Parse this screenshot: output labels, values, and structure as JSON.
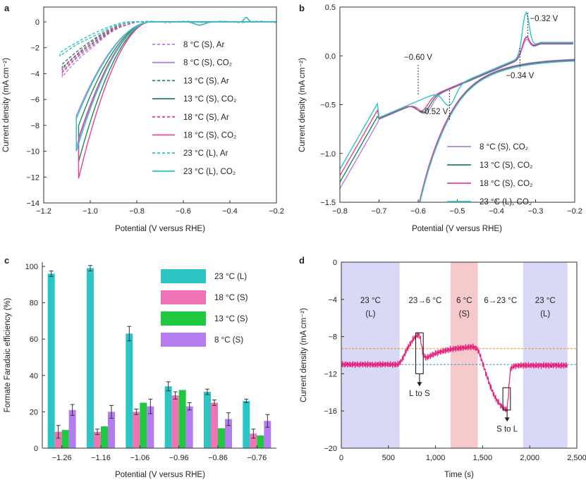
{
  "figure": {
    "panel_letters": [
      "a",
      "b",
      "c",
      "d"
    ]
  },
  "chart_data": [
    {
      "panel": "a",
      "type": "line",
      "xlabel": "Potential (V versus RHE)",
      "ylabel": "Current density (mA cm⁻²)",
      "xlim": [
        -1.2,
        -0.2
      ],
      "ylim": [
        -14,
        0.5
      ],
      "xticks": [
        -1.2,
        -1.0,
        -0.8,
        -0.6,
        -0.4,
        -0.2
      ],
      "xtick_labels": [
        "−1.2",
        "−1.0",
        "−0.8",
        "−0.6",
        "−0.4",
        "−0.2"
      ],
      "yticks": [
        0,
        -2,
        -4,
        -6,
        -8,
        -10,
        -12,
        -14
      ],
      "ytick_labels": [
        "0",
        "−2",
        "−4",
        "−6",
        "−8",
        "−10",
        "−12",
        "−14"
      ],
      "legend_position": "right",
      "series": [
        {
          "name": "8 °C (S), Ar",
          "color": "#b57ce8",
          "dashed": true,
          "xmin": -1.12,
          "jmin": -4.2,
          "onset": -0.8,
          "shape": 1.5
        },
        {
          "name": "8 °C (S), CO₂",
          "color": "#b57ce8",
          "dashed": false,
          "xmin": -1.06,
          "jmin": -9.7,
          "onset": -0.74,
          "shape": 1.9
        },
        {
          "name": "13 °C (S), Ar",
          "color": "#1e8a52",
          "dashed": true,
          "xmin": -1.12,
          "jmin": -3.6,
          "onset": -0.8,
          "shape": 1.5
        },
        {
          "name": "13 °C (S), CO₂",
          "color": "#1e8a52",
          "dashed": false,
          "xmin": -1.05,
          "jmin": -10.8,
          "onset": -0.74,
          "shape": 1.9
        },
        {
          "name": "18 °C (S), Ar",
          "color": "#e8409a",
          "dashed": true,
          "xmin": -1.12,
          "jmin": -3.9,
          "onset": -0.8,
          "shape": 1.5
        },
        {
          "name": "18 °C (S), CO₂",
          "color": "#e8409a",
          "dashed": false,
          "xmin": -1.05,
          "jmin": -12.1,
          "onset": -0.74,
          "shape": 1.9
        },
        {
          "name": "23 °C (L), Ar",
          "color": "#2cc5c5",
          "dashed": true,
          "xmin": -1.13,
          "jmin": -2.6,
          "onset": -0.82,
          "shape": 1.4
        },
        {
          "name": "23 °C (L), CO₂",
          "color": "#2cc5c5",
          "dashed": false,
          "xmin": -1.06,
          "jmin": -10.0,
          "onset": -0.74,
          "shape": 1.9
        }
      ]
    },
    {
      "panel": "b",
      "type": "line",
      "xlabel": "Potential (V versus RHE)",
      "ylabel": "Current density (mA cm⁻²)",
      "xlim": [
        -0.8,
        -0.2
      ],
      "ylim": [
        -1.5,
        0.5
      ],
      "xticks": [
        -0.8,
        -0.7,
        -0.6,
        -0.5,
        -0.4,
        -0.3,
        -0.2
      ],
      "xtick_labels": [
        "−0.8",
        "−0.7",
        "−0.6",
        "−0.5",
        "−0.4",
        "−0.3",
        "−0.2"
      ],
      "yticks": [
        0.5,
        0.0,
        -0.5,
        -1.0,
        -1.5
      ],
      "ytick_labels": [
        "0.5",
        "0.0",
        "−0.5",
        "−1.0",
        "−1.5"
      ],
      "legend_position": "bottom-right",
      "annotations": [
        {
          "text": "−0.32 V",
          "x": -0.32
        },
        {
          "text": "−0.34 V",
          "x": -0.34
        },
        {
          "text": "−0.60 V",
          "x": -0.6
        },
        {
          "text": "−0.52 V",
          "x": -0.52
        }
      ],
      "series": [
        {
          "name": "8 °C (S), CO₂",
          "color": "#b57ce8",
          "peak_ox": 0.12,
          "peak_red": -0.38
        },
        {
          "name": "13 °C (S), CO₂",
          "color": "#1e8a52",
          "peak_ox": 0.14,
          "peak_red": -0.36
        },
        {
          "name": "18 °C (S), CO₂",
          "color": "#e8409a",
          "peak_ox": 0.13,
          "peak_red": -0.3
        },
        {
          "name": "23 °C (L), CO₂",
          "color": "#2cc5c5",
          "peak_ox": 0.38,
          "peak_red": -0.5
        }
      ]
    },
    {
      "panel": "c",
      "type": "bar",
      "xlabel": "Potential (V versus RHE)",
      "ylabel": "Formate Faradaic efficiency (%)",
      "ylim": [
        0,
        100
      ],
      "yticks": [
        0,
        20,
        40,
        60,
        80,
        100
      ],
      "categories": [
        "−1.26",
        "−1.16",
        "−1.06",
        "−0.96",
        "−0.86",
        "−0.76"
      ],
      "legend_position": "top-right",
      "series": [
        {
          "name": "23 °C (L)",
          "color": "#2cc5c5",
          "values": [
            96,
            99,
            63,
            34,
            31,
            26
          ],
          "errors": [
            1.5,
            1.5,
            4,
            2.5,
            1.5,
            1
          ]
        },
        {
          "name": "18 °C (S)",
          "color": "#f073b5",
          "values": [
            9,
            9,
            20,
            29,
            25,
            8
          ],
          "errors": [
            3.5,
            1.5,
            1.5,
            2,
            1.5,
            2.5
          ]
        },
        {
          "name": "13 °C (S)",
          "color": "#20c840",
          "values": [
            10,
            12,
            25,
            32,
            11,
            7
          ],
          "errors": [
            0,
            0,
            0,
            0,
            0,
            0
          ]
        },
        {
          "name": "8 °C (S)",
          "color": "#b57cf0",
          "values": [
            21,
            20,
            23,
            23,
            16,
            15
          ],
          "errors": [
            3,
            3.5,
            4,
            2,
            3.5,
            3.5
          ]
        }
      ]
    },
    {
      "panel": "d",
      "type": "line",
      "xlabel": "Time (s)",
      "ylabel": "Current density (mA cm⁻²)",
      "xlim": [
        0,
        2500
      ],
      "ylim": [
        -20,
        0
      ],
      "xticks": [
        0,
        500,
        1000,
        1500,
        2000,
        2500
      ],
      "xtick_labels": [
        "0",
        "500",
        "1,000",
        "1,500",
        "2,000",
        "2,500"
      ],
      "yticks": [
        0,
        -4,
        -8,
        -12,
        -16,
        -20
      ],
      "ytick_labels": [
        "0",
        "−4",
        "−8",
        "−12",
        "−16",
        "−20"
      ],
      "reference_lines": [
        {
          "y": -9.3,
          "color": "#f08c1e"
        },
        {
          "y": -11.0,
          "color": "#3a9ad9"
        }
      ],
      "regions": [
        {
          "x0": 0,
          "x1": 620,
          "color": "#d9d8f7",
          "label_line1": "23 °C",
          "label_line2": "(L)"
        },
        {
          "x0": 620,
          "x1": 1160,
          "color": "#ffffff",
          "label_line1": "23→6 °C",
          "label_line2": ""
        },
        {
          "x0": 1160,
          "x1": 1450,
          "color": "#f6c9cd",
          "label_line1": "6 °C",
          "label_line2": "(S)"
        },
        {
          "x0": 1450,
          "x1": 1930,
          "color": "#ffffff",
          "label_line1": "6→23 °C",
          "label_line2": ""
        },
        {
          "x0": 1930,
          "x1": 2400,
          "color": "#d9d8f7",
          "label_line1": "23 °C",
          "label_line2": "(L)"
        }
      ],
      "annotations": [
        {
          "text": "L to S",
          "x": 830,
          "y_from": -12.0,
          "y_to": -13.2
        },
        {
          "text": "S to L",
          "x": 1760,
          "y_from": -15.8,
          "y_to": -17.0
        }
      ],
      "series": [
        {
          "name": "current",
          "color": "#e8207a",
          "x": [
            0,
            200,
            400,
            600,
            640,
            700,
            760,
            800,
            830,
            850,
            870,
            900,
            1000,
            1100,
            1200,
            1300,
            1400,
            1450,
            1480,
            1530,
            1580,
            1630,
            1690,
            1740,
            1760,
            1775,
            1790,
            1800,
            1830,
            1900,
            2000,
            2100,
            2200,
            2300,
            2400
          ],
          "y": [
            -11.0,
            -11.0,
            -11.0,
            -11.0,
            -10.6,
            -9.3,
            -8.3,
            -7.9,
            -7.8,
            -8.8,
            -10.0,
            -10.3,
            -9.8,
            -9.5,
            -9.3,
            -9.2,
            -9.1,
            -9.4,
            -10.2,
            -11.8,
            -13.3,
            -14.5,
            -15.4,
            -15.8,
            -15.9,
            -14.0,
            -12.0,
            -11.4,
            -11.2,
            -11.1,
            -11.1,
            -11.1,
            -11.1,
            -11.1,
            -11.1
          ]
        }
      ]
    }
  ]
}
